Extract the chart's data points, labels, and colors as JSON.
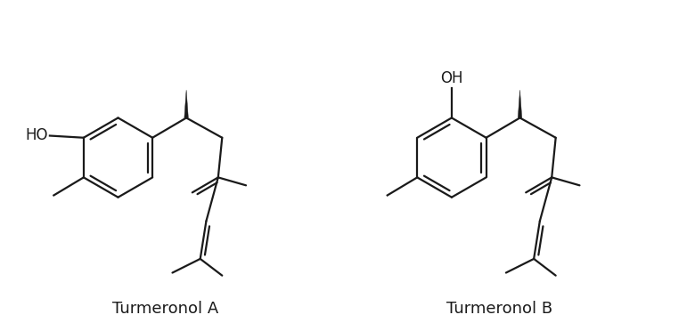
{
  "background_color": "#ffffff",
  "line_color": "#1a1a1a",
  "line_width": 1.6,
  "label_A": "Turmeronol A",
  "label_B": "Turmeronol B",
  "label_fontsize": 13,
  "ho_fontsize": 12,
  "fig_width": 7.8,
  "fig_height": 3.72,
  "dpi": 100
}
